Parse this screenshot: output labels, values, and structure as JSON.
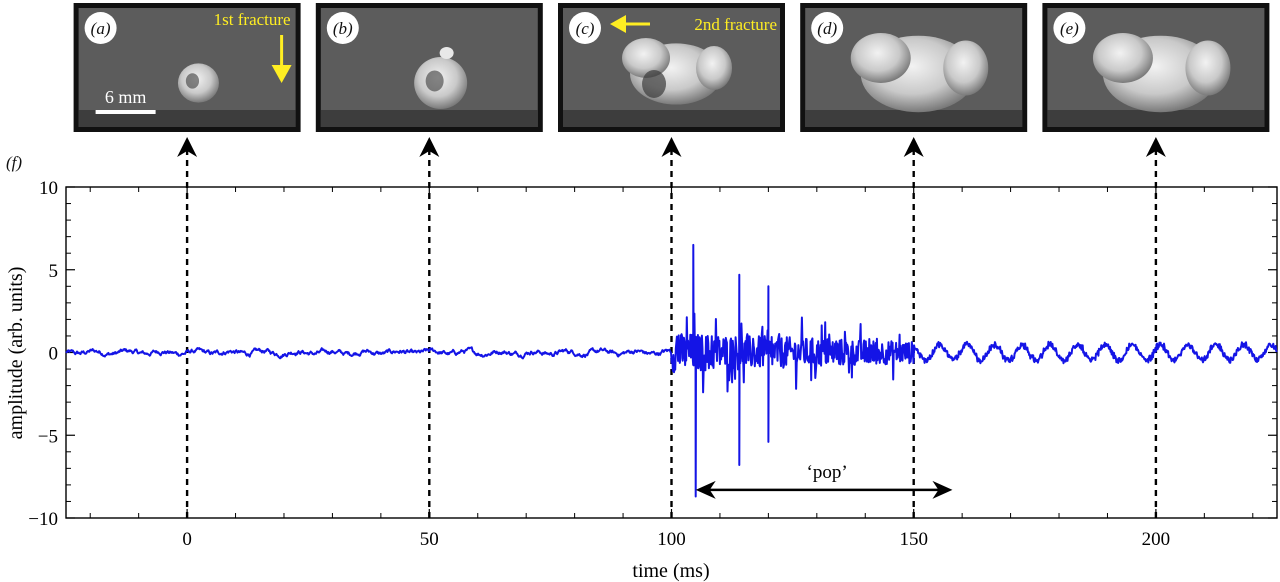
{
  "panel_f_label": "(f)",
  "frames": [
    {
      "label": "(a)",
      "time_ms": 0,
      "annotation": "1st fracture",
      "scale_bar": "6 mm"
    },
    {
      "label": "(b)",
      "time_ms": 50,
      "annotation": "",
      "scale_bar": ""
    },
    {
      "label": "(c)",
      "time_ms": 100,
      "annotation": "2nd fracture",
      "scale_bar": ""
    },
    {
      "label": "(d)",
      "time_ms": 150,
      "annotation": "",
      "scale_bar": ""
    },
    {
      "label": "(e)",
      "time_ms": 200,
      "annotation": "",
      "scale_bar": ""
    }
  ],
  "colors": {
    "signal": "#1414e6",
    "annotation": "#ffee22",
    "frame_border": "#111111"
  },
  "chart_data": {
    "type": "line",
    "title": "",
    "xlabel": "time (ms)",
    "ylabel": "amplitude (arb. units)",
    "xlim": [
      -25,
      225
    ],
    "ylim": [
      -10,
      10
    ],
    "xticks": [
      0,
      50,
      100,
      150,
      200
    ],
    "yticks": [
      -10,
      -5,
      0,
      5,
      10
    ],
    "xtick_labels": [
      "0",
      "50",
      "100",
      "150",
      "200"
    ],
    "ytick_labels": [
      "−10",
      "−5",
      "0",
      "5",
      "10"
    ],
    "grid": false,
    "vertical_markers_ms": [
      0,
      50,
      100,
      150,
      200
    ],
    "pop_annotation": {
      "text": "‘pop’",
      "x_start": 105,
      "x_end": 158,
      "y": -8.3
    },
    "series": [
      {
        "color": "#1414e6",
        "description": "",
        "peaks": [
          {
            "x": 104.5,
            "y": 6.5
          },
          {
            "x": 105.0,
            "y": -8.7
          },
          {
            "x": 114.0,
            "y": 4.7
          },
          {
            "x": 114.0,
            "y": -6.8
          },
          {
            "x": 120.0,
            "y": 4.0
          },
          {
            "x": 120.0,
            "y": -5.4
          }
        ],
        "baseline_noise_before_100ms": 0.2,
        "noise_100_150ms": 1.2,
        "noise_after_150ms": 0.5
      }
    ]
  }
}
